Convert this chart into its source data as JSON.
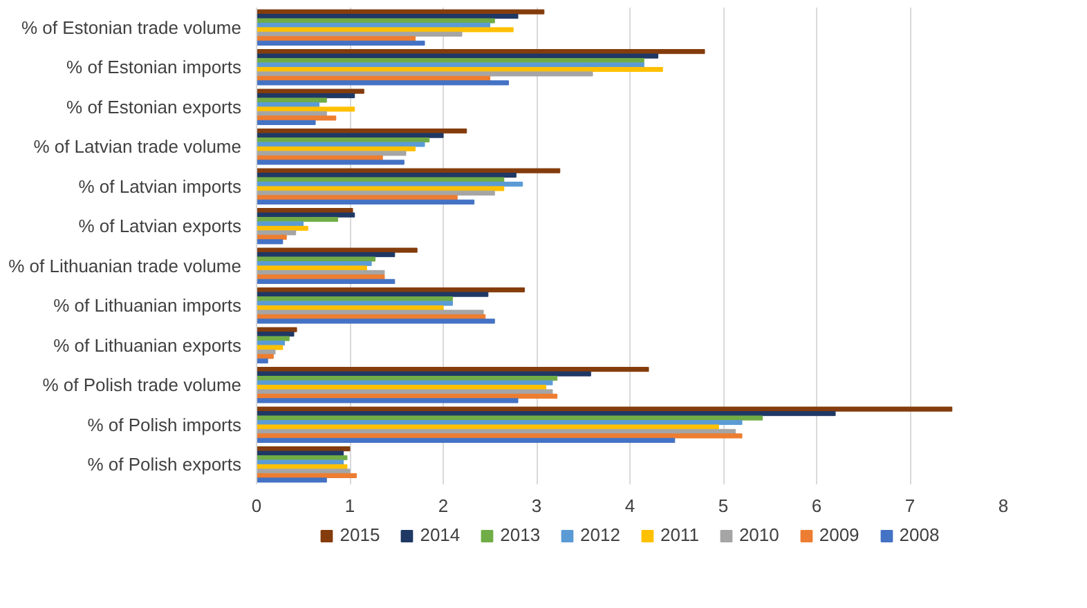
{
  "chart_data": {
    "type": "bar",
    "orientation": "horizontal",
    "categories": [
      "% of Estonian trade volume",
      "% of Estonian imports",
      "% of Estonian exports",
      "% of Latvian trade volume",
      "% of Latvian imports",
      "% of Latvian exports",
      "% of Lithuanian trade volume",
      "% of Lithuanian imports",
      "% of Lithuanian exports",
      "% of Polish trade volume",
      "% of Polish imports",
      "% of Polish exports"
    ],
    "series": [
      {
        "name": "2015",
        "color": "#843c0c",
        "values": [
          3.08,
          4.8,
          1.15,
          2.25,
          3.25,
          1.03,
          1.72,
          2.87,
          0.43,
          4.2,
          7.45,
          1.0
        ]
      },
      {
        "name": "2014",
        "color": "#1f3864",
        "values": [
          2.8,
          4.3,
          1.05,
          2.0,
          2.78,
          1.05,
          1.48,
          2.48,
          0.4,
          3.58,
          6.2,
          0.93
        ]
      },
      {
        "name": "2013",
        "color": "#70ad47",
        "values": [
          2.55,
          4.15,
          0.75,
          1.85,
          2.65,
          0.87,
          1.27,
          2.1,
          0.35,
          3.22,
          5.42,
          0.97
        ]
      },
      {
        "name": "2012",
        "color": "#5b9bd5",
        "values": [
          2.5,
          4.15,
          0.67,
          1.8,
          2.85,
          0.5,
          1.23,
          2.1,
          0.3,
          3.17,
          5.2,
          0.93
        ]
      },
      {
        "name": "2011",
        "color": "#ffc000",
        "values": [
          2.75,
          4.35,
          1.05,
          1.7,
          2.65,
          0.55,
          1.18,
          2.0,
          0.28,
          3.1,
          4.95,
          0.97
        ]
      },
      {
        "name": "2010",
        "color": "#a5a5a5",
        "values": [
          2.2,
          3.6,
          0.75,
          1.6,
          2.55,
          0.42,
          1.37,
          2.43,
          0.2,
          3.17,
          5.13,
          1.0
        ]
      },
      {
        "name": "2009",
        "color": "#ed7d31",
        "values": [
          1.7,
          2.5,
          0.85,
          1.35,
          2.15,
          0.32,
          1.37,
          2.45,
          0.18,
          3.22,
          5.2,
          1.07
        ]
      },
      {
        "name": "2008",
        "color": "#4472c4",
        "values": [
          1.8,
          2.7,
          0.63,
          1.58,
          2.33,
          0.28,
          1.48,
          2.55,
          0.12,
          2.8,
          4.48,
          0.75
        ]
      }
    ],
    "xlim": [
      0,
      8
    ],
    "xticks": [
      0,
      1,
      2,
      3,
      4,
      5,
      6,
      7,
      8
    ],
    "grid": "x",
    "legend": "bottom"
  }
}
